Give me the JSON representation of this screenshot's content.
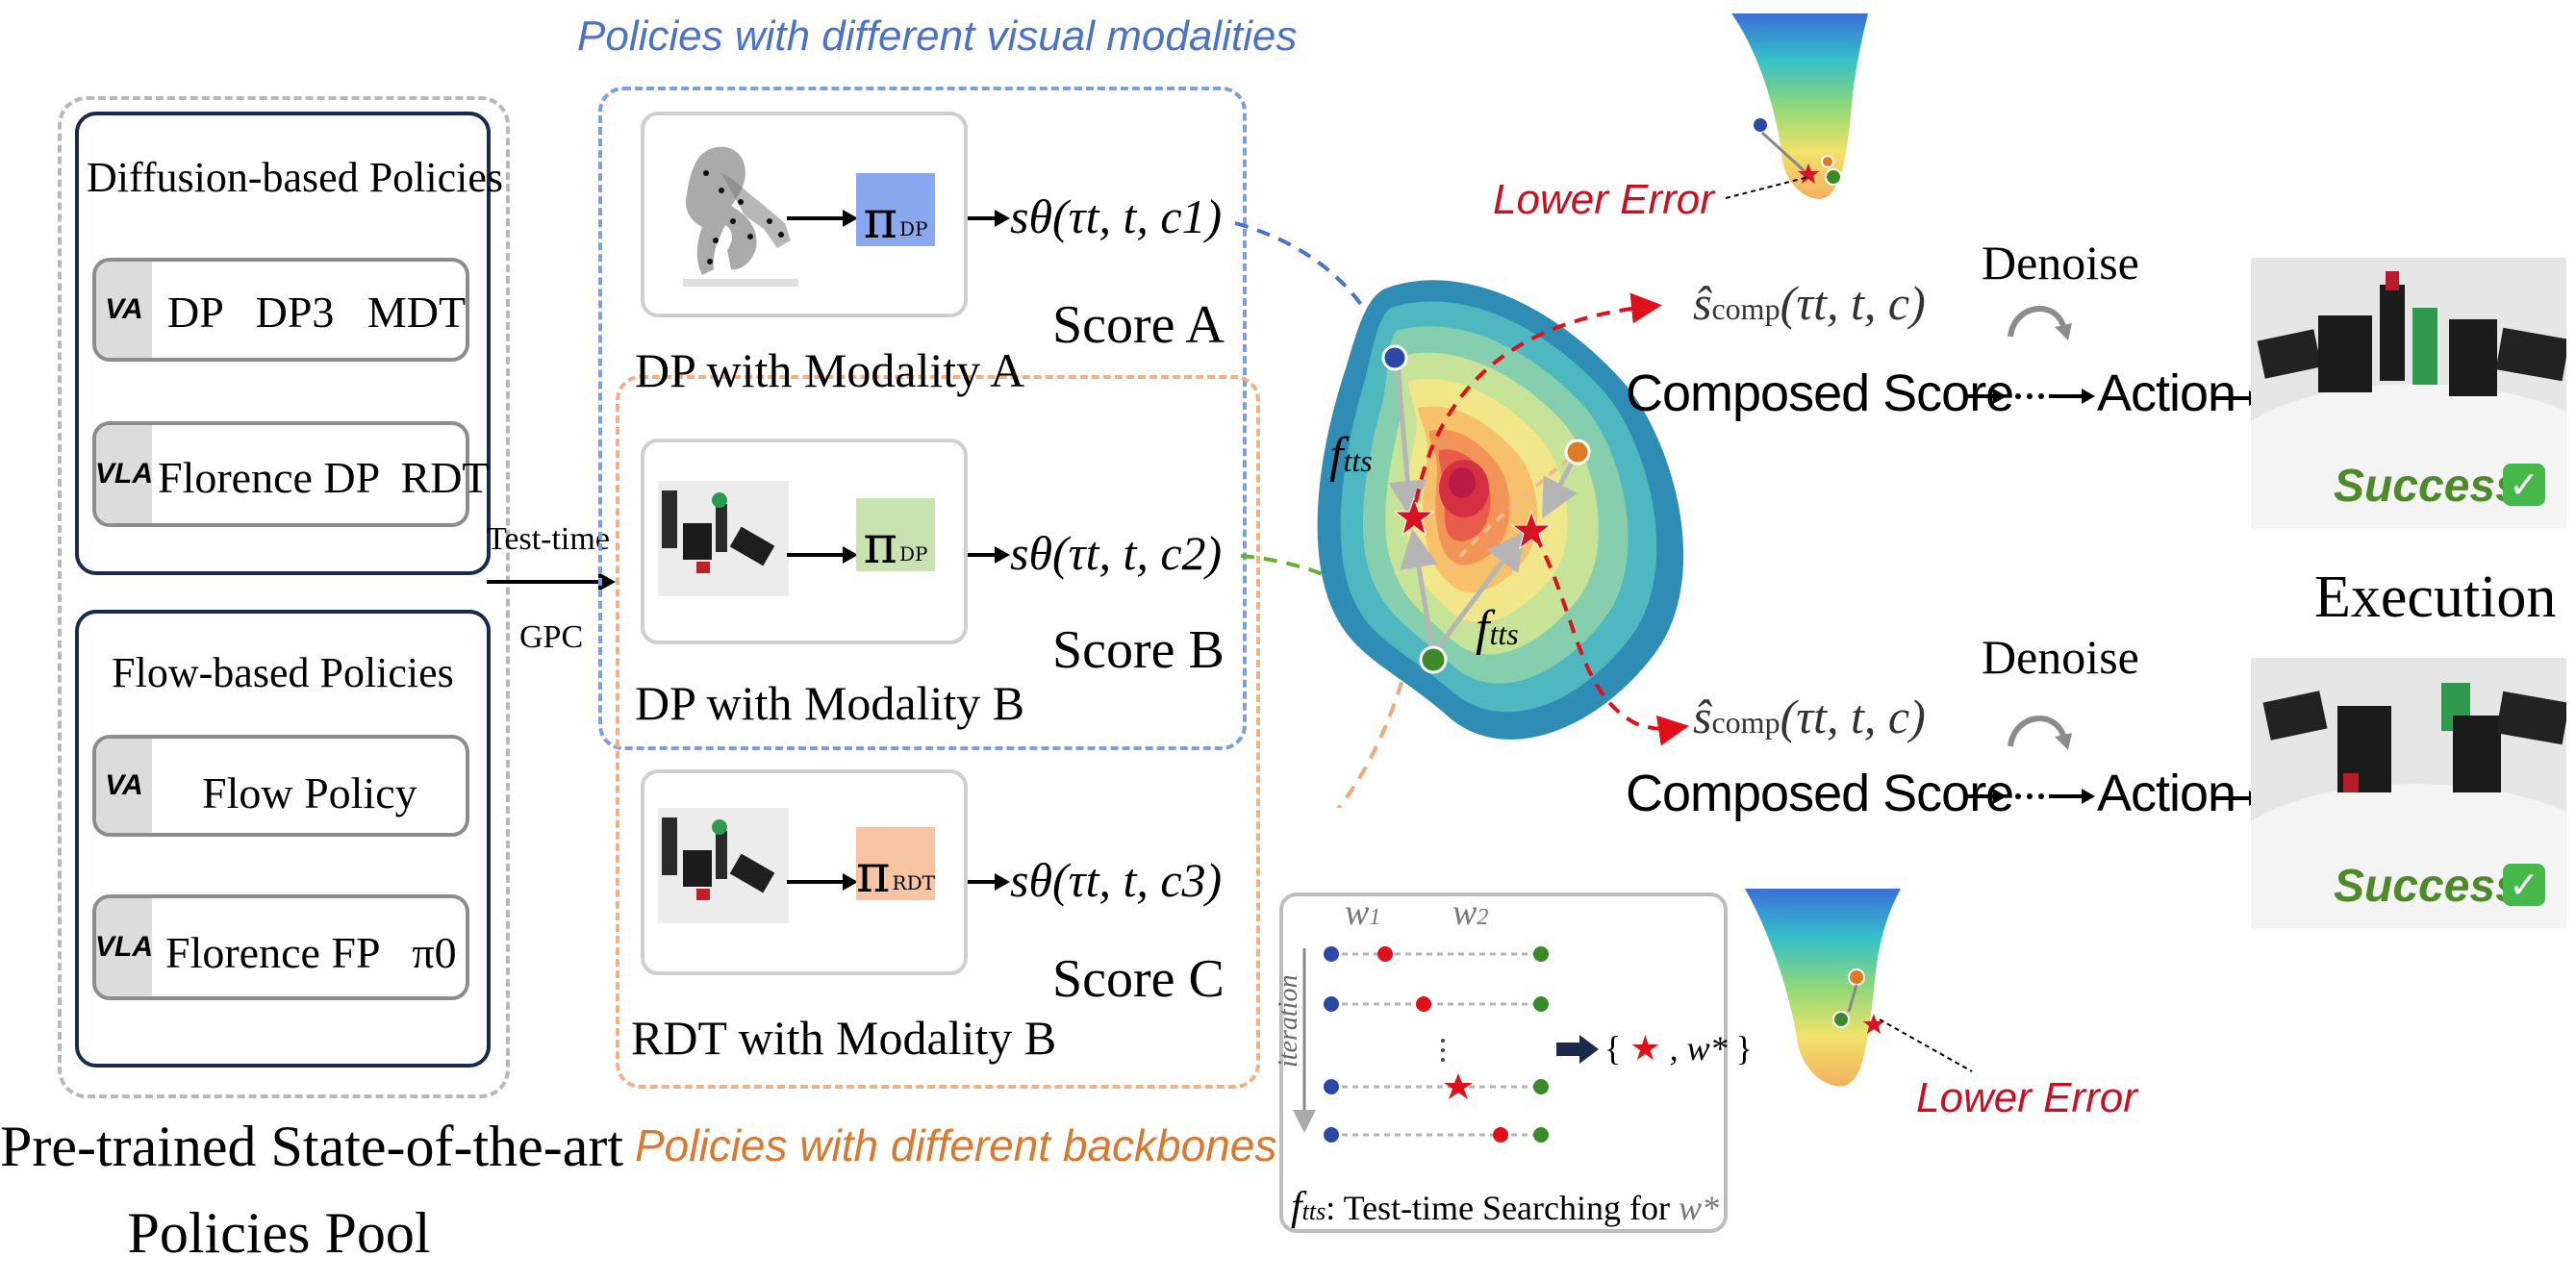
{
  "pool": {
    "title_line1": "Pre-trained State-of-the-art",
    "title_line2": "Policies Pool",
    "diffusion": {
      "title": "Diffusion-based Policies",
      "va_tag": "VA",
      "va_items": "DP   DP3   MDT",
      "vla_tag": "VLA",
      "vla_items": "Florence DP  RDT"
    },
    "flow": {
      "title": "Flow-based Policies",
      "va_tag": "VA",
      "va_items": "Flow Policy",
      "vla_tag": "VLA",
      "vla_items": "Florence FP   π0"
    }
  },
  "arrow": {
    "line1": "Test-time",
    "line2": "GPC"
  },
  "modalities_title": "Policies with different visual modalities",
  "backbones_title": "Policies with different backbones",
  "policies": [
    {
      "pi": "π",
      "pi_sub": "DP",
      "caption": "DP with Modality A",
      "score_expr": "sθ(τt, t, c1)",
      "score_label": "Score A",
      "color": "#8aa8f0"
    },
    {
      "pi": "π",
      "pi_sub": "DP",
      "caption": "DP with Modality B",
      "score_expr": "sθ(τt, t, c2)",
      "score_label": "Score B",
      "color": "#c8e2b0"
    },
    {
      "pi": "π",
      "pi_sub": "RDT",
      "caption": "RDT with Modality B",
      "score_expr": "sθ(τt, t, c3)",
      "score_label": "Score C",
      "color": "#f5c4a3"
    }
  ],
  "landscape": {
    "ftts_1": "f",
    "ftts_sub": "tts",
    "ftts_2": "f"
  },
  "composed": [
    {
      "label": "Composed Score",
      "action": "Action",
      "denoise": "Denoise",
      "lower_error": "Lower Error"
    },
    {
      "label": "Composed Score",
      "action": "Action",
      "denoise": "Denoise",
      "lower_error": "Lower Error"
    }
  ],
  "s_hat": {
    "s": "ŝ",
    "sub": "comp",
    "args": "(τt, t, c)"
  },
  "execution": {
    "title": "Execution",
    "success": "Success"
  },
  "search": {
    "w1": "w",
    "w1_sub": "1",
    "w2": "w",
    "w2_sub": "2",
    "iteration": "iteration",
    "result_open": "{",
    "result_mid": ", w*",
    "result_close": "}",
    "caption_f": "f",
    "caption_sub": "tts",
    "caption_text": ": Test-time Searching for ",
    "caption_w": "w*"
  },
  "colors": {
    "blue_dash": "#6a8fd6",
    "orange_dash": "#eeaa78",
    "red": "#d0101a",
    "green_text": "#4e8a2a",
    "navy": "#1b2a4a"
  }
}
